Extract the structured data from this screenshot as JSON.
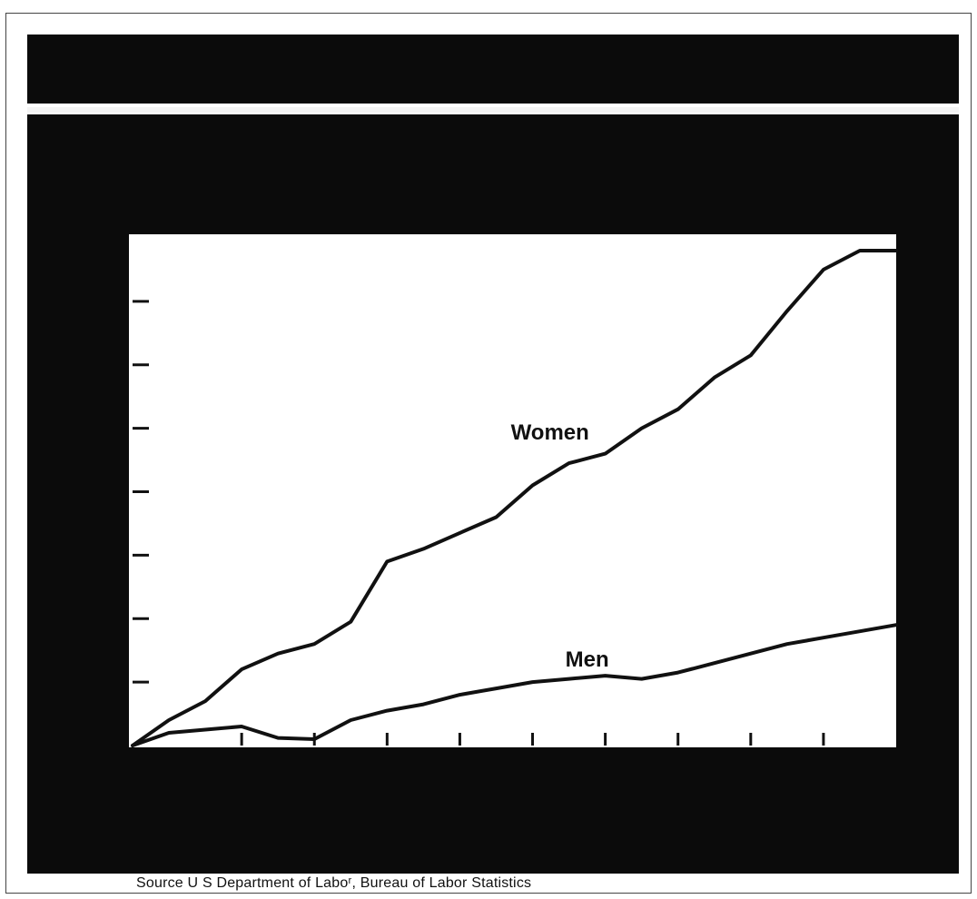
{
  "source_note": "Source U S Department of Laboʳ, Bureau of Labor Statistics",
  "chart_data": {
    "type": "line",
    "title": "",
    "xlabel": "",
    "ylabel": "",
    "x": [
      0,
      1,
      2,
      3,
      4,
      5,
      6,
      7,
      8,
      9,
      10,
      11,
      12,
      13,
      14,
      15,
      16,
      17,
      18,
      19,
      20,
      21
    ],
    "x_tick_positions": [
      3,
      5,
      7,
      9,
      11,
      13,
      15,
      17,
      19
    ],
    "ylim": [
      0,
      8
    ],
    "y_ticks": [
      1,
      2,
      3,
      4,
      5,
      6,
      7
    ],
    "grid": false,
    "legend": "inline labels",
    "series": [
      {
        "name": "Women",
        "color": "#111111",
        "values": [
          0,
          0.4,
          0.7,
          1.2,
          1.45,
          1.6,
          1.95,
          2.9,
          3.1,
          3.35,
          3.6,
          4.1,
          4.45,
          4.6,
          5.0,
          5.3,
          5.8,
          6.15,
          6.85,
          7.5,
          7.8,
          7.8
        ]
      },
      {
        "name": "Men",
        "color": "#111111",
        "values": [
          0,
          0.2,
          0.25,
          0.3,
          0.12,
          0.1,
          0.4,
          0.55,
          0.65,
          0.8,
          0.9,
          1.0,
          1.05,
          1.1,
          1.05,
          1.15,
          1.3,
          1.45,
          1.6,
          1.7,
          1.8,
          1.9
        ]
      }
    ]
  }
}
